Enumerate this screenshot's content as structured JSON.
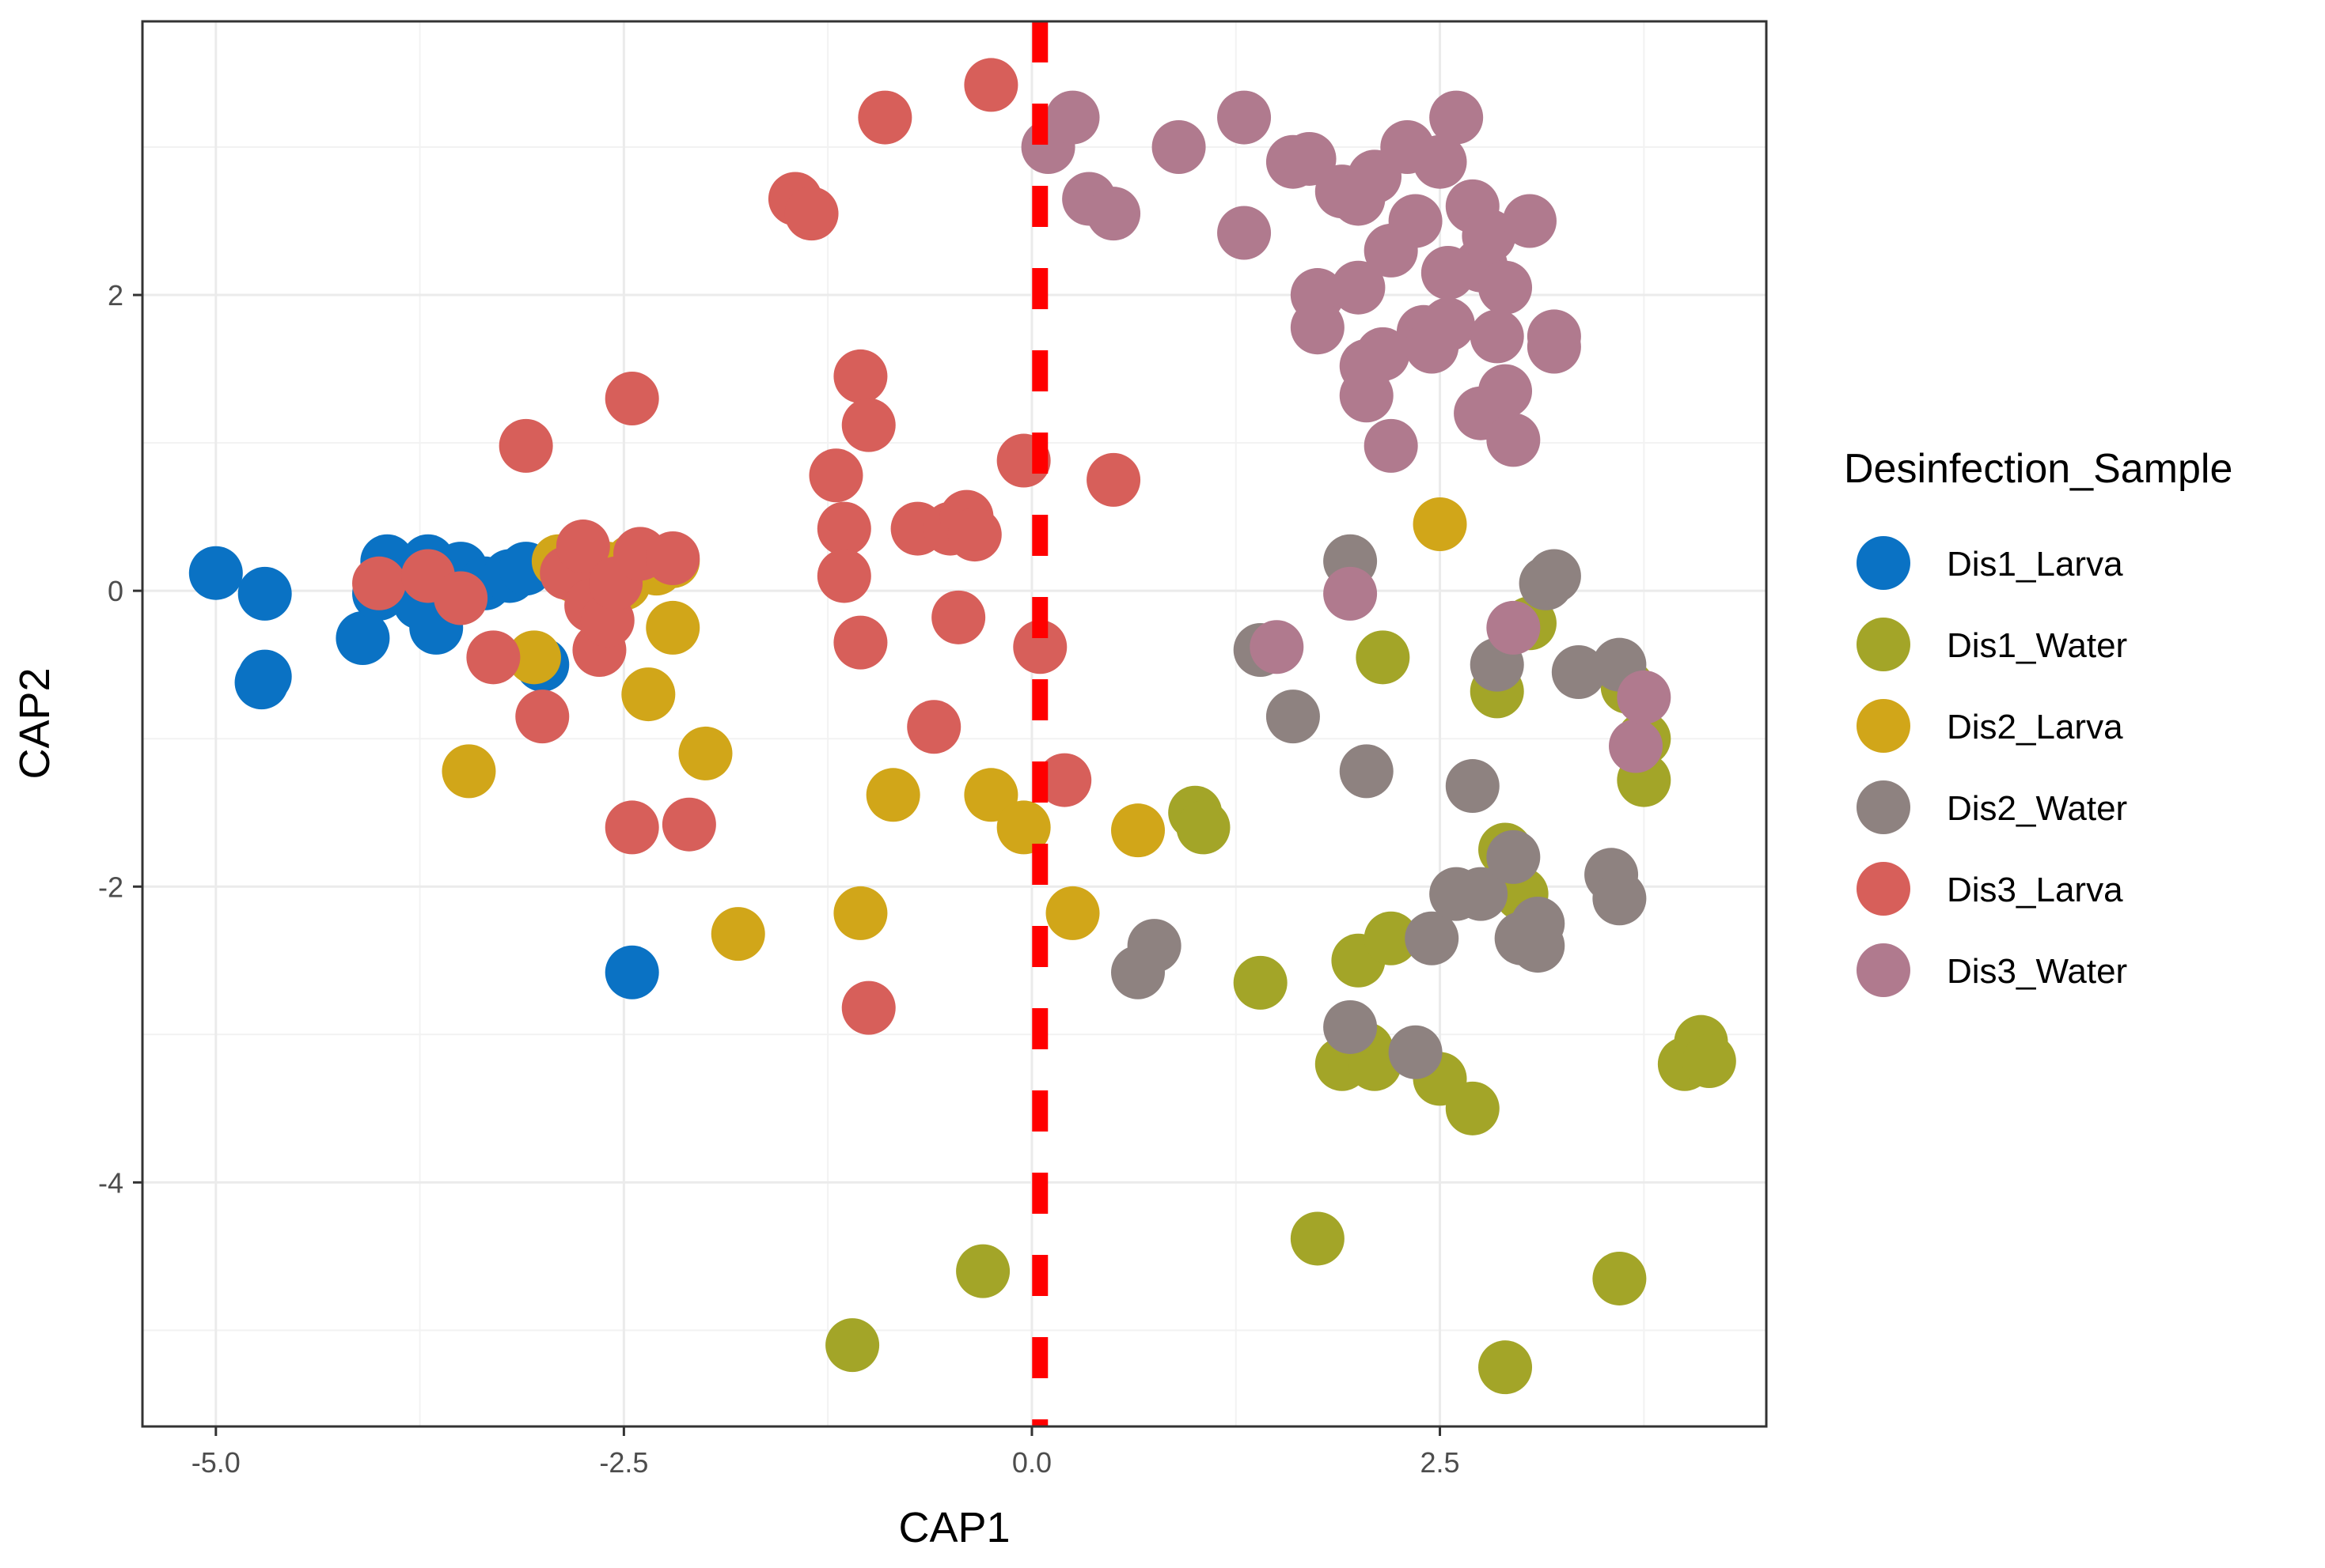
{
  "chart_data": {
    "type": "scatter",
    "title": "",
    "xlabel": "CAP1",
    "ylabel": "CAP2",
    "xlim": [
      -5.45,
      4.5
    ],
    "ylim": [
      -5.65,
      3.85
    ],
    "x_ticks": [
      {
        "value": -5.0,
        "label": "-5.0"
      },
      {
        "value": -2.5,
        "label": "-2.5"
      },
      {
        "value": 0.0,
        "label": "0.0"
      },
      {
        "value": 2.5,
        "label": "2.5"
      }
    ],
    "y_ticks": [
      {
        "value": 2,
        "label": "2"
      },
      {
        "value": 0,
        "label": "0"
      },
      {
        "value": -2,
        "label": "-2"
      },
      {
        "value": -4,
        "label": "-4"
      }
    ],
    "grid": true,
    "reference_line": {
      "axis": "x",
      "value": 0.05,
      "style": "dashed",
      "color": "#ff0000"
    },
    "legend": {
      "title": "Desinfection_Sample",
      "position": "right"
    },
    "series": [
      {
        "name": "Dis1_Larva",
        "color": "#0A72C4",
        "points": [
          [
            -5.0,
            0.12
          ],
          [
            -4.7,
            -0.02
          ],
          [
            -4.7,
            -0.58
          ],
          [
            -4.72,
            -0.62
          ],
          [
            -4.1,
            -0.32
          ],
          [
            -4.0,
            -0.02
          ],
          [
            -3.95,
            0.2
          ],
          [
            -3.85,
            0.05
          ],
          [
            -3.75,
            -0.08
          ],
          [
            -3.7,
            0.2
          ],
          [
            -3.65,
            -0.25
          ],
          [
            -3.55,
            0.05
          ],
          [
            -3.5,
            0.15
          ],
          [
            -3.35,
            0.05
          ],
          [
            -3.2,
            0.1
          ],
          [
            -3.1,
            0.15
          ],
          [
            -3.0,
            -0.5
          ],
          [
            -2.45,
            -2.58
          ]
        ]
      },
      {
        "name": "Dis1_Water",
        "color": "#A3A528",
        "points": [
          [
            -1.1,
            -5.1
          ],
          [
            -0.3,
            -4.6
          ],
          [
            1.0,
            -1.5
          ],
          [
            1.05,
            -1.6
          ],
          [
            1.4,
            -2.65
          ],
          [
            1.75,
            -4.38
          ],
          [
            1.9,
            -3.2
          ],
          [
            2.0,
            -2.5
          ],
          [
            2.05,
            -3.1
          ],
          [
            2.1,
            -3.2
          ],
          [
            2.15,
            -0.45
          ],
          [
            2.2,
            -2.35
          ],
          [
            2.5,
            -3.3
          ],
          [
            2.7,
            -3.5
          ],
          [
            2.85,
            -0.68
          ],
          [
            2.9,
            -1.75
          ],
          [
            2.9,
            -5.25
          ],
          [
            3.0,
            -2.05
          ],
          [
            3.05,
            -0.22
          ],
          [
            3.6,
            -4.65
          ],
          [
            3.65,
            -0.65
          ],
          [
            3.75,
            -1.0
          ],
          [
            3.75,
            -1.28
          ],
          [
            4.0,
            -3.2
          ],
          [
            4.1,
            -3.05
          ],
          [
            4.15,
            -3.18
          ]
        ]
      },
      {
        "name": "Dis2_Larva",
        "color": "#D1A619",
        "points": [
          [
            -3.45,
            -1.22
          ],
          [
            -3.05,
            -0.45
          ],
          [
            -2.9,
            0.2
          ],
          [
            -2.8,
            0.1
          ],
          [
            -2.6,
            0.15
          ],
          [
            -2.5,
            0.05
          ],
          [
            -2.45,
            0.2
          ],
          [
            -2.35,
            -0.7
          ],
          [
            -2.3,
            0.15
          ],
          [
            -2.2,
            -0.25
          ],
          [
            -2.2,
            0.2
          ],
          [
            -2.0,
            -1.1
          ],
          [
            -1.8,
            -2.32
          ],
          [
            -1.05,
            -2.18
          ],
          [
            -0.85,
            -1.38
          ],
          [
            -0.25,
            -1.38
          ],
          [
            -0.05,
            -1.6
          ],
          [
            0.25,
            -2.18
          ],
          [
            0.65,
            -1.62
          ],
          [
            2.5,
            0.45
          ]
        ]
      },
      {
        "name": "Dis2_Water",
        "color": "#8E8280",
        "points": [
          [
            0.65,
            -2.58
          ],
          [
            0.75,
            -2.4
          ],
          [
            1.4,
            -0.4
          ],
          [
            1.6,
            -0.85
          ],
          [
            1.95,
            0.2
          ],
          [
            1.95,
            -2.95
          ],
          [
            2.05,
            -1.22
          ],
          [
            2.35,
            -3.12
          ],
          [
            2.45,
            -2.35
          ],
          [
            2.6,
            -2.05
          ],
          [
            2.7,
            -1.32
          ],
          [
            2.75,
            -2.05
          ],
          [
            2.85,
            -0.5
          ],
          [
            2.95,
            -1.8
          ],
          [
            3.0,
            -2.35
          ],
          [
            3.1,
            -2.4
          ],
          [
            3.1,
            -2.25
          ],
          [
            3.15,
            0.05
          ],
          [
            3.2,
            0.1
          ],
          [
            3.35,
            -0.55
          ],
          [
            3.6,
            -0.5
          ],
          [
            3.55,
            -1.92
          ],
          [
            3.6,
            -2.08
          ]
        ]
      },
      {
        "name": "Dis3_Larva",
        "color": "#D75F5A",
        "points": [
          [
            -4.0,
            0.05
          ],
          [
            -3.7,
            0.1
          ],
          [
            -3.5,
            -0.05
          ],
          [
            -3.3,
            -0.45
          ],
          [
            -3.1,
            0.98
          ],
          [
            -3.0,
            -0.85
          ],
          [
            -2.85,
            0.12
          ],
          [
            -2.75,
            0.3
          ],
          [
            -2.7,
            -0.1
          ],
          [
            -2.65,
            -0.4
          ],
          [
            -2.6,
            -0.2
          ],
          [
            -2.55,
            0.05
          ],
          [
            -2.45,
            1.3
          ],
          [
            -2.45,
            -1.6
          ],
          [
            -2.4,
            0.25
          ],
          [
            -2.2,
            0.22
          ],
          [
            -2.1,
            -1.58
          ],
          [
            -1.45,
            2.65
          ],
          [
            -1.35,
            2.55
          ],
          [
            -1.2,
            0.78
          ],
          [
            -1.15,
            0.42
          ],
          [
            -1.15,
            0.1
          ],
          [
            -1.05,
            1.45
          ],
          [
            -1.05,
            -0.35
          ],
          [
            -1.0,
            1.12
          ],
          [
            -1.0,
            -2.82
          ],
          [
            -0.9,
            3.2
          ],
          [
            -0.7,
            0.42
          ],
          [
            -0.6,
            -0.92
          ],
          [
            -0.5,
            0.42
          ],
          [
            -0.45,
            -0.18
          ],
          [
            -0.4,
            0.5
          ],
          [
            -0.35,
            0.38
          ],
          [
            -0.25,
            3.42
          ],
          [
            -0.05,
            0.88
          ],
          [
            0.05,
            -0.38
          ],
          [
            0.2,
            -1.28
          ],
          [
            0.5,
            0.75
          ]
        ]
      },
      {
        "name": "Dis3_Water",
        "color": "#B07A8E",
        "points": [
          [
            0.1,
            3.0
          ],
          [
            0.25,
            3.2
          ],
          [
            0.35,
            2.65
          ],
          [
            0.5,
            2.55
          ],
          [
            0.9,
            3.0
          ],
          [
            1.3,
            3.2
          ],
          [
            1.3,
            2.42
          ],
          [
            1.5,
            -0.38
          ],
          [
            1.6,
            2.9
          ],
          [
            1.7,
            2.92
          ],
          [
            1.75,
            2.0
          ],
          [
            1.75,
            1.78
          ],
          [
            1.9,
            2.7
          ],
          [
            1.95,
            -0.02
          ],
          [
            2.0,
            2.65
          ],
          [
            2.0,
            2.05
          ],
          [
            2.05,
            1.52
          ],
          [
            2.05,
            1.32
          ],
          [
            2.1,
            2.8
          ],
          [
            2.15,
            1.6
          ],
          [
            2.2,
            2.3
          ],
          [
            2.2,
            0.98
          ],
          [
            2.3,
            3.0
          ],
          [
            2.35,
            2.5
          ],
          [
            2.4,
            1.75
          ],
          [
            2.45,
            1.65
          ],
          [
            2.5,
            2.9
          ],
          [
            2.55,
            2.15
          ],
          [
            2.55,
            1.8
          ],
          [
            2.6,
            3.2
          ],
          [
            2.7,
            2.6
          ],
          [
            2.75,
            2.2
          ],
          [
            2.75,
            1.2
          ],
          [
            2.8,
            2.4
          ],
          [
            2.85,
            1.72
          ],
          [
            2.9,
            2.05
          ],
          [
            2.9,
            1.35
          ],
          [
            2.95,
            1.02
          ],
          [
            2.95,
            -0.25
          ],
          [
            3.05,
            2.5
          ],
          [
            3.2,
            1.72
          ],
          [
            3.2,
            1.65
          ],
          [
            3.7,
            -1.05
          ],
          [
            3.75,
            -0.72
          ]
        ]
      }
    ]
  }
}
